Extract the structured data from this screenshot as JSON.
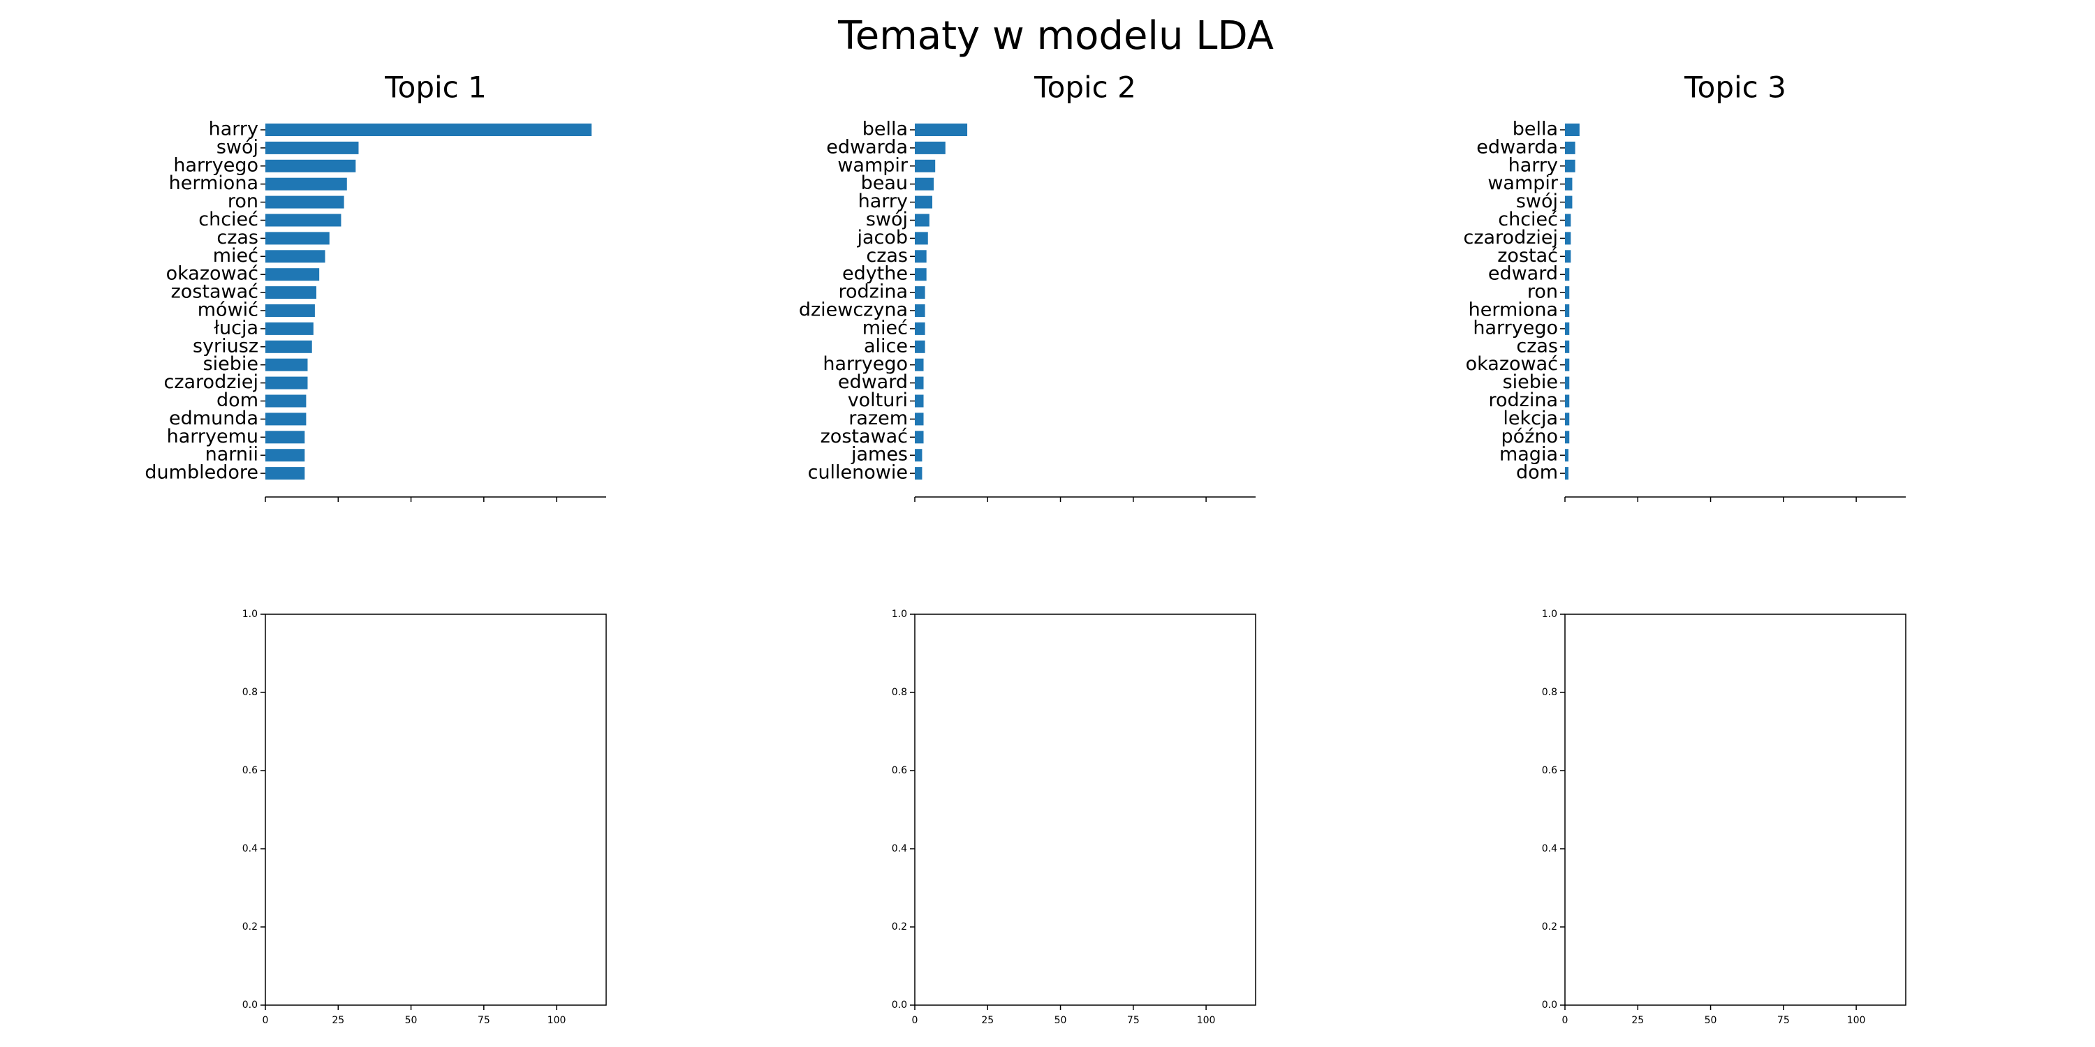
{
  "figure": {
    "title": "Tematy w modelu LDA"
  },
  "colors": {
    "bar": "#1f77b4",
    "axis": "#000000",
    "background": "#ffffff"
  },
  "chart_data": [
    {
      "type": "bar",
      "orientation": "horizontal",
      "title": "Topic 1",
      "categories": [
        "harry",
        "swój",
        "harryego",
        "hermiona",
        "ron",
        "chcieć",
        "czas",
        "mieć",
        "okazować",
        "zostawać",
        "mówić",
        "łucja",
        "syriusz",
        "siebie",
        "czarodziej",
        "dom",
        "edmunda",
        "harryemu",
        "narnii",
        "dumbledore"
      ],
      "values": [
        112,
        32,
        31,
        28,
        27,
        26,
        22,
        20.5,
        18.5,
        17.5,
        17,
        16.5,
        16,
        14.5,
        14.5,
        14,
        14,
        13.5,
        13.5,
        13.5
      ],
      "xlim": [
        0,
        117
      ],
      "xticks": [
        0,
        25,
        50,
        75,
        100
      ],
      "xtick_labels_visible": false,
      "grid": false
    },
    {
      "type": "bar",
      "orientation": "horizontal",
      "title": "Topic 2",
      "categories": [
        "bella",
        "edwarda",
        "wampir",
        "beau",
        "harry",
        "swój",
        "jacob",
        "czas",
        "edythe",
        "rodzina",
        "dziewczyna",
        "mieć",
        "alice",
        "harryego",
        "edward",
        "volturi",
        "razem",
        "zostawać",
        "james",
        "cullenowie"
      ],
      "values": [
        18,
        10.5,
        7,
        6.5,
        6,
        5,
        4.5,
        4,
        4,
        3.5,
        3.5,
        3.5,
        3.5,
        3,
        3,
        3,
        3,
        3,
        2.5,
        2.5
      ],
      "xlim": [
        0,
        117
      ],
      "xticks": [
        0,
        25,
        50,
        75,
        100
      ],
      "xtick_labels_visible": false,
      "grid": false
    },
    {
      "type": "bar",
      "orientation": "horizontal",
      "title": "Topic 3",
      "categories": [
        "bella",
        "edwarda",
        "harry",
        "wampir",
        "swój",
        "chcieć",
        "czarodziej",
        "zostać",
        "edward",
        "ron",
        "hermiona",
        "harryego",
        "czas",
        "okazować",
        "siebie",
        "rodzina",
        "lekcja",
        "późno",
        "magia",
        "dom"
      ],
      "values": [
        5,
        3.5,
        3.5,
        2.5,
        2.5,
        2,
        2,
        2,
        1.5,
        1.5,
        1.5,
        1.5,
        1.5,
        1.5,
        1.5,
        1.5,
        1.5,
        1.5,
        1.2,
        1.2
      ],
      "xlim": [
        0,
        117
      ],
      "xticks": [
        0,
        25,
        50,
        75,
        100
      ],
      "xtick_labels_visible": false,
      "grid": false
    },
    {
      "type": "bar",
      "title": "",
      "categories": [],
      "values": [],
      "xlim": [
        0,
        117
      ],
      "ylim": [
        0,
        1
      ],
      "xticks": [
        0,
        25,
        50,
        75,
        100
      ],
      "yticks": [
        0.0,
        0.2,
        0.4,
        0.6,
        0.8,
        1.0
      ],
      "xtick_labels": [
        "0",
        "25",
        "50",
        "75",
        "100"
      ],
      "ytick_labels": [
        "0.0",
        "0.2",
        "0.4",
        "0.6",
        "0.8",
        "1.0"
      ],
      "grid": false
    },
    {
      "type": "bar",
      "title": "",
      "categories": [],
      "values": [],
      "xlim": [
        0,
        117
      ],
      "ylim": [
        0,
        1
      ],
      "xticks": [
        0,
        25,
        50,
        75,
        100
      ],
      "yticks": [
        0.0,
        0.2,
        0.4,
        0.6,
        0.8,
        1.0
      ],
      "xtick_labels": [
        "0",
        "25",
        "50",
        "75",
        "100"
      ],
      "ytick_labels": [
        "0.0",
        "0.2",
        "0.4",
        "0.6",
        "0.8",
        "1.0"
      ],
      "grid": false
    },
    {
      "type": "bar",
      "title": "",
      "categories": [],
      "values": [],
      "xlim": [
        0,
        117
      ],
      "ylim": [
        0,
        1
      ],
      "xticks": [
        0,
        25,
        50,
        75,
        100
      ],
      "yticks": [
        0.0,
        0.2,
        0.4,
        0.6,
        0.8,
        1.0
      ],
      "xtick_labels": [
        "0",
        "25",
        "50",
        "75",
        "100"
      ],
      "ytick_labels": [
        "0.0",
        "0.2",
        "0.4",
        "0.6",
        "0.8",
        "1.0"
      ],
      "grid": false
    }
  ]
}
